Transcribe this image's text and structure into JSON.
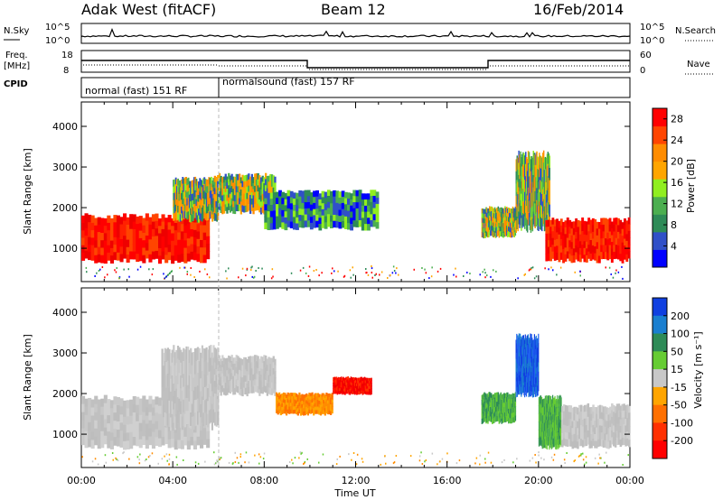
{
  "header": {
    "station": "Adak West (fitACF)",
    "beam": "Beam 12",
    "date": "16/Feb/2014"
  },
  "panels": {
    "nsky_label": "N.Sky",
    "nsky_ticks": [
      "10^5",
      "10^0"
    ],
    "nsearch_label": "N.Search",
    "nsearch_ticks": [
      "10^5",
      "10^0"
    ],
    "freq_label": "Freq.",
    "freq_unit": "[MHz]",
    "freq_ticks": [
      "18",
      "8"
    ],
    "nave_label": "Nave",
    "nave_ticks": [
      "60",
      "0"
    ],
    "cpid_label": "CPID",
    "cpid_segments": [
      {
        "label": "normal (fast) 151 RF",
        "start": 0.0,
        "end": 6.0
      },
      {
        "label": "normalsound (fast) 157 RF",
        "start": 6.0,
        "end": 24.0
      }
    ]
  },
  "chart_data": [
    {
      "type": "heatmap",
      "name": "power",
      "ylabel": "Slant Range [km]",
      "xlabel": "Time UT",
      "xlim": [
        0,
        24
      ],
      "ylim": [
        180,
        4600
      ],
      "x_ticks": [
        "00:00",
        "04:00",
        "08:00",
        "12:00",
        "16:00",
        "20:00",
        "00:00"
      ],
      "y_ticks": [
        1000,
        2000,
        3000,
        4000
      ],
      "colorbar": {
        "label": "Power [dB]",
        "ticks": [
          4,
          8,
          12,
          16,
          20,
          24,
          28
        ],
        "range": [
          0,
          30
        ],
        "colors": [
          "#0000ff",
          "#3050c8",
          "#2e8b57",
          "#4caf50",
          "#90ee20",
          "#ffa500",
          "#ff8c00",
          "#ff4500",
          "#ff0000"
        ]
      },
      "regions": [
        {
          "t0": 0.0,
          "t1": 5.6,
          "r0": 700,
          "r1": 1800,
          "level": "high"
        },
        {
          "t0": 4.0,
          "t1": 6.0,
          "r0": 1700,
          "r1": 2700,
          "level": "mid"
        },
        {
          "t0": 5.8,
          "t1": 8.5,
          "r0": 1900,
          "r1": 2800,
          "level": "mid"
        },
        {
          "t0": 8.0,
          "t1": 13.0,
          "r0": 1500,
          "r1": 2400,
          "level": "low"
        },
        {
          "t0": 17.5,
          "t1": 19.0,
          "r0": 1300,
          "r1": 2000,
          "level": "mid"
        },
        {
          "t0": 19.0,
          "t1": 20.5,
          "r0": 1500,
          "r1": 3300,
          "level": "mid"
        },
        {
          "t0": 20.3,
          "t1": 24.0,
          "r0": 700,
          "r1": 1700,
          "level": "high"
        }
      ]
    },
    {
      "type": "heatmap",
      "name": "velocity",
      "ylabel": "Slant Range [km]",
      "xlabel": "Time UT",
      "xlim": [
        0,
        24
      ],
      "ylim": [
        180,
        4600
      ],
      "x_ticks": [
        "00:00",
        "04:00",
        "08:00",
        "12:00",
        "16:00",
        "20:00",
        "00:00"
      ],
      "y_ticks": [
        1000,
        2000,
        3000,
        4000
      ],
      "colorbar": {
        "label": "Velocity [m s⁻¹]",
        "ticks": [
          "200",
          "100",
          "50",
          "15",
          "-15",
          "-50",
          "-100",
          "-200"
        ],
        "colors": [
          "#1040e0",
          "#1a7fd0",
          "#2e8b57",
          "#66cc33",
          "#c8c8c8",
          "#ffa500",
          "#ff7000",
          "#ff3000",
          "#ff0000"
        ]
      },
      "regions": [
        {
          "t0": 0.0,
          "t1": 5.6,
          "r0": 700,
          "r1": 1900,
          "level": "grey"
        },
        {
          "t0": 3.5,
          "t1": 6.0,
          "r0": 1200,
          "r1": 3100,
          "level": "grey"
        },
        {
          "t0": 5.8,
          "t1": 8.5,
          "r0": 2000,
          "r1": 2900,
          "level": "grey"
        },
        {
          "t0": 8.5,
          "t1": 11.0,
          "r0": 1500,
          "r1": 2000,
          "level": "orange"
        },
        {
          "t0": 11.0,
          "t1": 12.7,
          "r0": 2000,
          "r1": 2400,
          "level": "red"
        },
        {
          "t0": 17.5,
          "t1": 19.0,
          "r0": 1300,
          "r1": 2000,
          "level": "green"
        },
        {
          "t0": 19.0,
          "t1": 20.0,
          "r0": 2000,
          "r1": 3400,
          "level": "blue"
        },
        {
          "t0": 20.0,
          "t1": 21.0,
          "r0": 700,
          "r1": 1900,
          "level": "green"
        },
        {
          "t0": 21.0,
          "t1": 24.0,
          "r0": 700,
          "r1": 1700,
          "level": "grey"
        }
      ]
    }
  ]
}
